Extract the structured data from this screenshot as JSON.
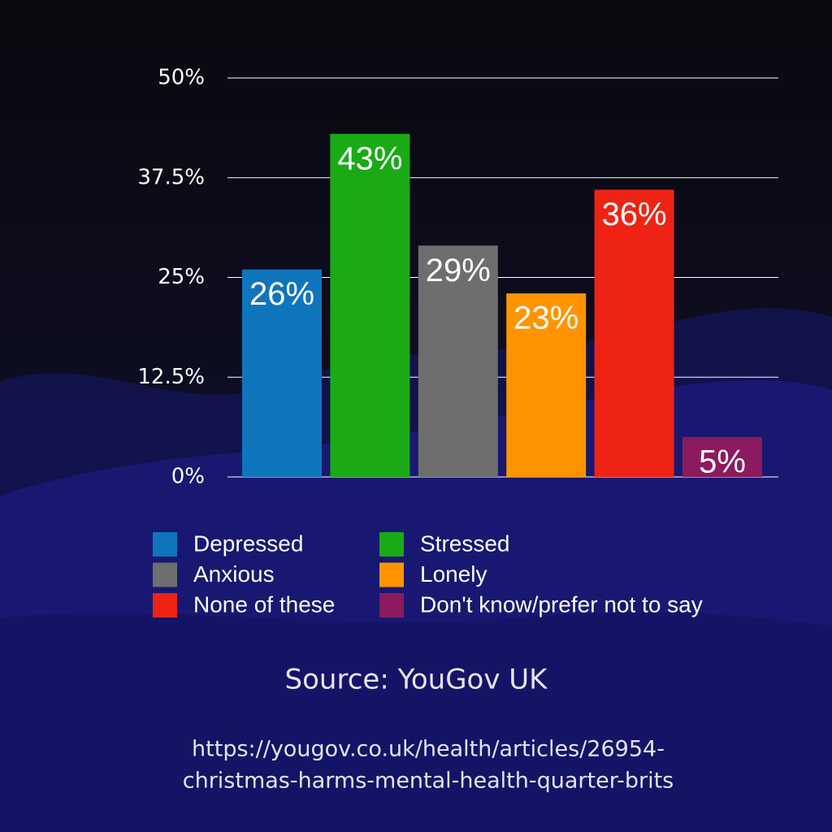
{
  "chart_data": {
    "type": "bar",
    "series": [
      {
        "name": "Depressed",
        "color": "#0f75bc",
        "values": [
          26
        ],
        "value_labels": [
          "26%"
        ]
      },
      {
        "name": "Stressed",
        "color": "#1aaa16",
        "values": [
          43
        ],
        "value_labels": [
          "43%"
        ]
      },
      {
        "name": "Anxious",
        "color": "#6e6e6e",
        "values": [
          29
        ],
        "value_labels": [
          "29%"
        ]
      },
      {
        "name": "Lonely",
        "color": "#ff9400",
        "values": [
          23
        ],
        "value_labels": [
          "23%"
        ]
      },
      {
        "name": "None of these",
        "color": "#ee2314",
        "values": [
          36
        ],
        "value_labels": [
          "36%"
        ]
      },
      {
        "name": "Don't know/prefer not to say",
        "color": "#8b1a5e",
        "values": [
          5
        ],
        "value_labels": [
          "5%"
        ]
      }
    ],
    "ylim": [
      0,
      50
    ],
    "yticks": [
      {
        "value": 0,
        "label": "0%"
      },
      {
        "value": 12.5,
        "label": "12.5%"
      },
      {
        "value": 25,
        "label": "25%"
      },
      {
        "value": 37.5,
        "label": "37.5%"
      },
      {
        "value": 50,
        "label": "50%"
      }
    ],
    "grid": true,
    "source": "Source: YouGov UK",
    "url": [
      "https://yougov.co.uk/health/articles/26954-",
      "christmas-harms-mental-health-quarter-brits"
    ]
  }
}
